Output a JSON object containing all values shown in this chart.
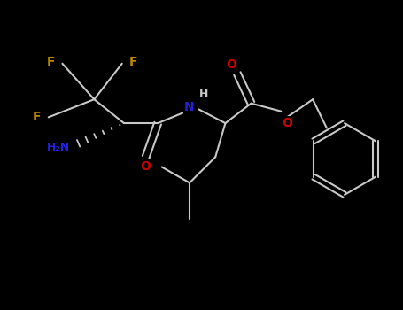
{
  "bg_color": "#000000",
  "bond_color": "#c8c8c8",
  "N_color": "#2222dd",
  "O_color": "#cc0000",
  "F_color": "#bb8800",
  "figsize": [
    4.55,
    3.5
  ],
  "dpi": 100,
  "xlim": [
    -0.5,
    9.5
  ],
  "ylim": [
    -0.3,
    7.5
  ]
}
